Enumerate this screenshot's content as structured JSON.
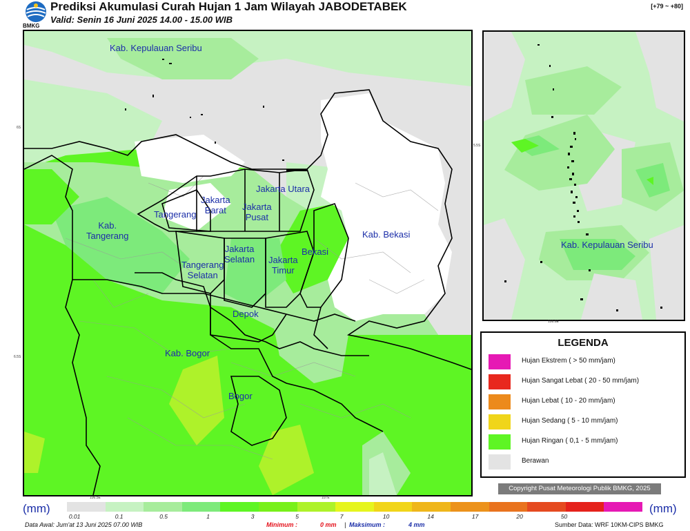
{
  "header": {
    "title": "Prediksi Akumulasi Curah Hujan 1 Jam Wilayah JABODETABEK",
    "subtitle": "Valid: Senin 16 Juni 2025 14.00 - 15.00 WIB",
    "corner": "[+79 ~ +80]",
    "logo_text": "BMKG"
  },
  "map": {
    "labels": {
      "kepulauan": "Kab. Kepulauan Seribu",
      "jakarta_utara": "Jakarta Utara",
      "jakarta_barat": "Jakarta\nBarat",
      "jakarta_pusat": "Jakarta\nPusat",
      "tangerang": "Tangerang",
      "kab_tangerang": "Kab.\nTangerang",
      "jakarta_selatan": "Jakarta\nSelatan",
      "jakarta_timur": "Jakarta\nTimur",
      "bekasi": "Bekasi",
      "kab_bekasi": "Kab. Bekasi",
      "tangerang_selatan": "Tangerang\nSelatan",
      "depok": "Depok",
      "kab_bogor": "Kab. Bogor",
      "bogor": "Bogor"
    },
    "ticks": {
      "lat_6s": "6S",
      "lat_65s": "6.5S",
      "lon_1065e": "106.5E",
      "lon_107e": "107E"
    }
  },
  "inset": {
    "label": "Kab. Kepulauan Seribu",
    "ticks": {
      "lat_55s": "5.5S",
      "lon_1066e": "106.6E"
    }
  },
  "legend": {
    "title": "LEGENDA",
    "items": [
      {
        "label": "Hujan Ekstrem ( > 50 mm/jam)",
        "color": "#e619b4"
      },
      {
        "label": "Hujan Sangat Lebat ( 20 - 50 mm/jam)",
        "color": "#e8281e"
      },
      {
        "label": "Hujan Lebat ( 10 - 20 mm/jam)",
        "color": "#ec8a1c"
      },
      {
        "label": "Hujan Sedang ( 5 - 10 mm/jam)",
        "color": "#f0d51a"
      },
      {
        "label": "Hujan Ringan ( 0,1 - 5 mm/jam)",
        "color": "#5ef524"
      },
      {
        "label": "Berawan",
        "color": "#e3e3e3"
      }
    ]
  },
  "copyright": "Copyright Pusat Meteorologi Publik BMKG, 2025",
  "scale": {
    "unit_left": "(mm)",
    "unit_right": "(mm)",
    "colors": [
      "#e3e3e3",
      "#c6f2c2",
      "#a7ec9c",
      "#7dea7b",
      "#5ef524",
      "#78f01a",
      "#aef22a",
      "#e6f51e",
      "#f1d51a",
      "#efb61b",
      "#ec921c",
      "#e9731e",
      "#e54a20",
      "#e5221c",
      "#e619b4"
    ],
    "ticks": [
      "0.01",
      "0.1",
      "0.5",
      "1",
      "3",
      "5",
      "7",
      "10",
      "14",
      "17",
      "20",
      "50"
    ]
  },
  "footer": {
    "data_awal": "Data Awal: Jum'at 13 Juni 2025 07.00 WIB",
    "min_label": "Minimum :",
    "min_value": "0 mm",
    "max_label": "Maksimum :",
    "max_value": "4 mm",
    "source": "Sumber Data: WRF 10KM-CIPS BMKG"
  }
}
